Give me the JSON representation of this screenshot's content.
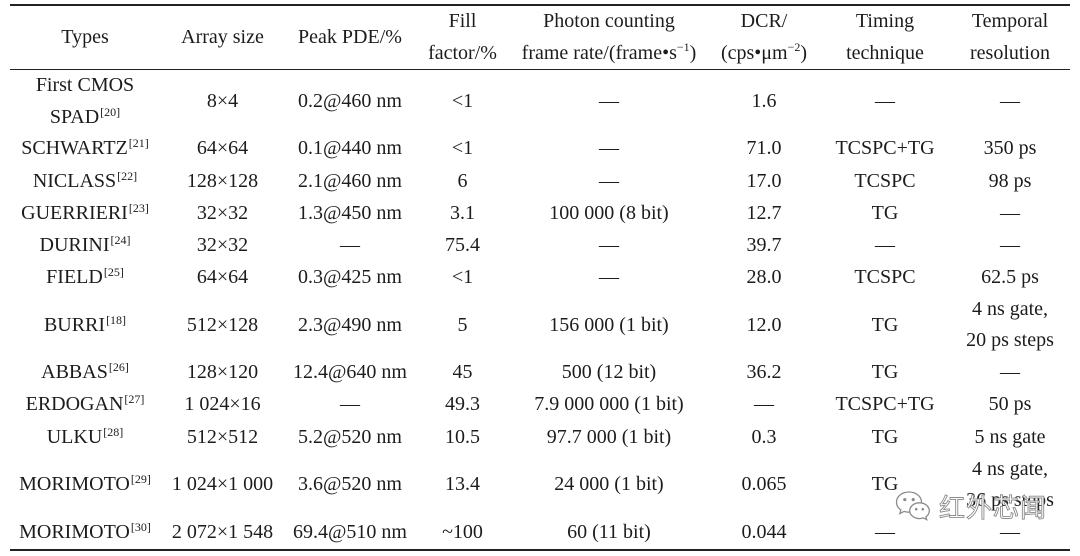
{
  "colors": {
    "text": "#1c1c1c",
    "rules": "#222222",
    "watermark_outline": "#8c8c8c"
  },
  "table": {
    "headers": [
      [
        "Types"
      ],
      [
        "Array size"
      ],
      [
        "Peak PDE/%"
      ],
      [
        "Fill",
        "factor/%"
      ],
      [
        "Photon counting",
        {
          "text": "frame rate/(frame•s",
          "sup": "−1",
          "after": ")"
        }
      ],
      [
        "DCR/",
        {
          "text": "(cps•μm",
          "sup": "−2",
          "after": ")"
        }
      ],
      [
        "Timing",
        "technique"
      ],
      [
        "Temporal",
        "resolution"
      ]
    ],
    "rows": [
      [
        {
          "name": [
            "First CMOS",
            "SPAD"
          ],
          "ref": "[20]"
        },
        "8×4",
        "0.2@460 nm",
        "<1",
        "—",
        "1.6",
        "—",
        "—"
      ],
      [
        {
          "name": [
            "SCHWARTZ"
          ],
          "ref": "[21]"
        },
        "64×64",
        "0.1@440 nm",
        "<1",
        "—",
        "71.0",
        "TCSPC+TG",
        "350 ps"
      ],
      [
        {
          "name": [
            "NICLASS"
          ],
          "ref": "[22]"
        },
        "128×128",
        "2.1@460 nm",
        "6",
        "—",
        "17.0",
        "TCSPC",
        "98 ps"
      ],
      [
        {
          "name": [
            "GUERRIERI"
          ],
          "ref": "[23]"
        },
        "32×32",
        "1.3@450 nm",
        "3.1",
        "100 000 (8 bit)",
        "12.7",
        "TG",
        "—"
      ],
      [
        {
          "name": [
            "DURINI"
          ],
          "ref": "[24]"
        },
        "32×32",
        "—",
        "75.4",
        "—",
        "39.7",
        "—",
        "—"
      ],
      [
        {
          "name": [
            "FIELD"
          ],
          "ref": "[25]"
        },
        "64×64",
        "0.3@425 nm",
        "<1",
        "—",
        "28.0",
        "TCSPC",
        "62.5 ps"
      ],
      [
        {
          "name": [
            "BURRI"
          ],
          "ref": "[18]"
        },
        "512×128",
        "2.3@490 nm",
        "5",
        "156 000 (1 bit)",
        "12.0",
        "TG",
        [
          "4 ns gate,",
          "20 ps steps"
        ]
      ],
      [
        {
          "name": [
            "ABBAS"
          ],
          "ref": "[26]"
        },
        "128×120",
        "12.4@640 nm",
        "45",
        "500 (12 bit)",
        "36.2",
        "TG",
        "—"
      ],
      [
        {
          "name": [
            "ERDOGAN"
          ],
          "ref": "[27]"
        },
        "1 024×16",
        "—",
        "49.3",
        "7.9 000 000 (1 bit)",
        "—",
        "TCSPC+TG",
        "50 ps"
      ],
      [
        {
          "name": [
            "ULKU"
          ],
          "ref": "[28]"
        },
        "512×512",
        "5.2@520 nm",
        "10.5",
        "97.7 000 (1 bit)",
        "0.3",
        "TG",
        "5 ns gate"
      ],
      [
        {
          "name": [
            "MORIMOTO"
          ],
          "ref": "[29]"
        },
        "1 024×1 000",
        "3.6@520 nm",
        "13.4",
        "24 000 (1 bit)",
        "0.065",
        "TG",
        [
          "4 ns gate,",
          "36 ps steps"
        ]
      ],
      [
        {
          "name": [
            "MORIMOTO"
          ],
          "ref": "[30]"
        },
        "2 072×1 548",
        "69.4@510 nm",
        "~100",
        "60 (11 bit)",
        "0.044",
        "—",
        "—"
      ]
    ]
  },
  "watermark": {
    "icon": "wechat-icon",
    "text": "红外芯闻"
  }
}
